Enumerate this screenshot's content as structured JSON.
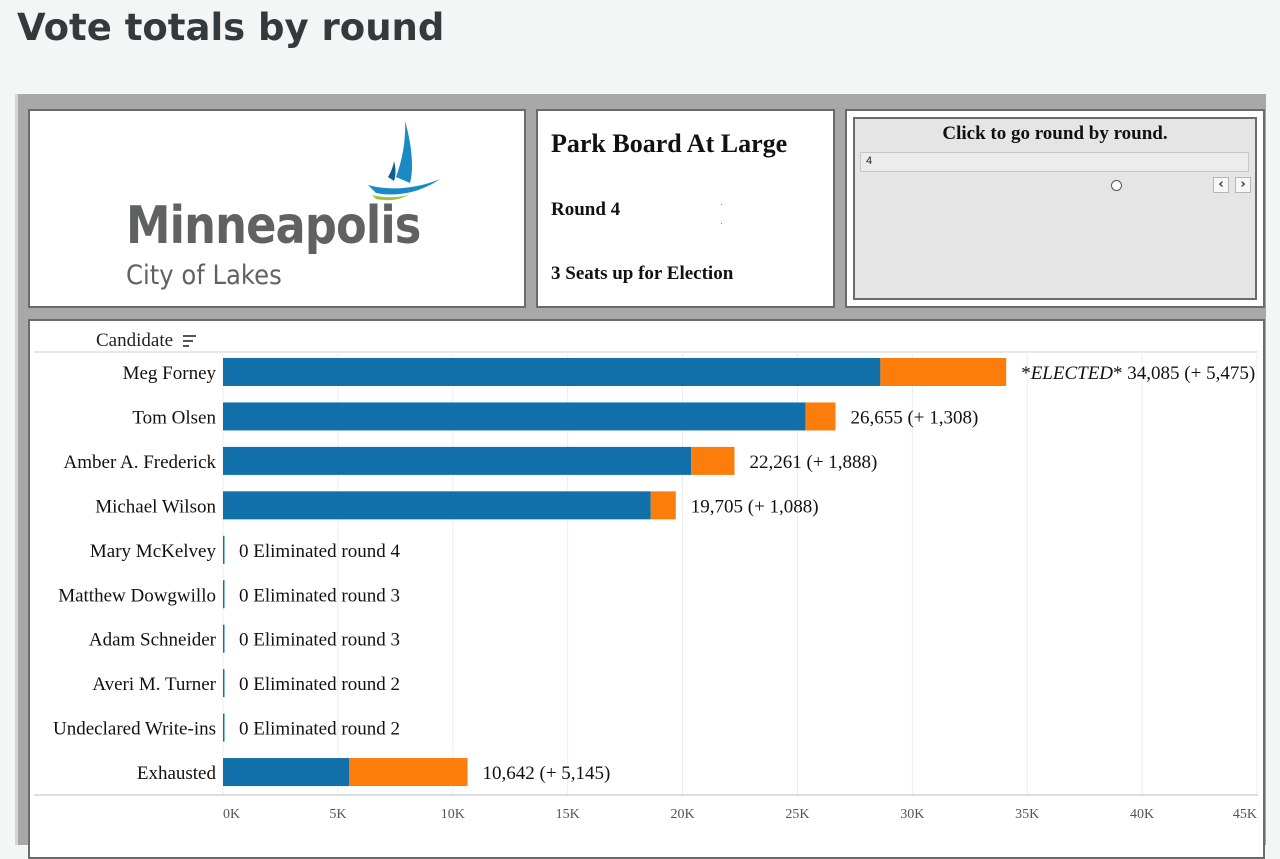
{
  "page": {
    "title": "Vote totals by round"
  },
  "logo": {
    "name": "Minneapolis",
    "tagline": "City of Lakes"
  },
  "info": {
    "contest": "Park Board At Large",
    "round_label": "Round 4",
    "seats_label": "3 Seats up for Election"
  },
  "control": {
    "title": "Click to go round by round.",
    "value": "4",
    "prev_icon": "chevron-left-icon",
    "next_icon": "chevron-right-icon"
  },
  "colors": {
    "prior": "#1170aa",
    "gain": "#fc7d0b",
    "grid": "#ececec"
  },
  "chart_data": {
    "type": "bar",
    "orientation": "horizontal",
    "stacked": true,
    "row_header": "Candidate",
    "categories": [
      "Meg Forney",
      "Tom Olsen",
      "Amber A. Frederick",
      "Michael Wilson",
      "Mary McKelvey",
      "Matthew Dowgwillo",
      "Adam Schneider",
      "Averi M. Turner",
      "Undeclared Write-ins",
      "Exhausted"
    ],
    "series": [
      {
        "values": [
          28610,
          25347,
          20373,
          18617,
          0,
          0,
          0,
          0,
          0,
          5497
        ]
      },
      {
        "values": [
          5475,
          1308,
          1888,
          1088,
          0,
          0,
          0,
          0,
          0,
          5145
        ]
      }
    ],
    "bar_labels": [
      "*ELECTED* 34,085 (+ 5,475)",
      "26,655 (+ 1,308)",
      "22,261 (+ 1,888)",
      "19,705 (+ 1,088)",
      "0 Eliminated round 4",
      "0 Eliminated round 3",
      "0 Eliminated round 3",
      "0 Eliminated round 2",
      "0 Eliminated round 2",
      "10,642 (+ 5,145)"
    ],
    "xticks": [
      "0K",
      "5K",
      "10K",
      "15K",
      "20K",
      "25K",
      "30K",
      "35K",
      "40K",
      "45K"
    ],
    "xlim": [
      0,
      45000
    ],
    "grid": true
  }
}
